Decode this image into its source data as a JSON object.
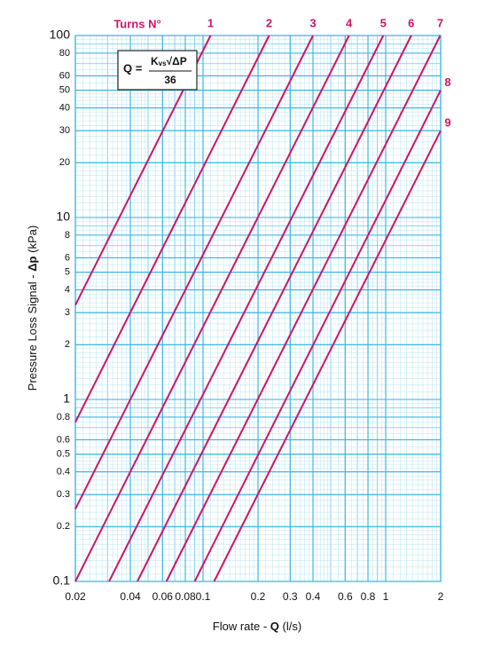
{
  "chart_data": {
    "type": "line",
    "log_x": true,
    "log_y": true,
    "grid": true,
    "legend_title": "Turns N°",
    "x_label": [
      "Flow rate - ",
      "Q",
      " (l/s)"
    ],
    "y_label": [
      "Pressure Loss Signal  - ",
      "Δp",
      " (kPa)"
    ],
    "formula": {
      "lhs": "Q =",
      "k": "K",
      "sub": "vs",
      "root": "√ΔP",
      "denominator": "36"
    },
    "xlim": [
      0.02,
      2
    ],
    "ylim": [
      0.1,
      100
    ],
    "xticks": [
      0.02,
      0.04,
      0.06,
      0.08,
      0.1,
      0.2,
      0.3,
      0.4,
      0.6,
      0.8,
      1,
      2
    ],
    "yticks": [
      0.1,
      0.2,
      0.3,
      0.4,
      0.5,
      0.6,
      0.8,
      1,
      2,
      3,
      4,
      5,
      6,
      8,
      10,
      20,
      30,
      40,
      50,
      60,
      80,
      100
    ],
    "series": [
      {
        "name": "1",
        "color": "#cf1468",
        "x": [
          0.02,
          0.11
        ],
        "values": [
          3.3,
          100
        ]
      },
      {
        "name": "2",
        "color": "#cf1468",
        "x": [
          0.02,
          0.23
        ],
        "values": [
          0.75,
          100
        ]
      },
      {
        "name": "3",
        "color": "#cf1468",
        "x": [
          0.02,
          0.4
        ],
        "values": [
          0.25,
          100
        ]
      },
      {
        "name": "4",
        "color": "#cf1468",
        "x": [
          0.02,
          0.63
        ],
        "values": [
          0.1,
          100
        ]
      },
      {
        "name": "5",
        "color": "#cf1468",
        "x": [
          0.0306,
          0.97
        ],
        "values": [
          0.1,
          100
        ]
      },
      {
        "name": "6",
        "color": "#cf1468",
        "x": [
          0.0437,
          1.38
        ],
        "values": [
          0.1,
          100
        ]
      },
      {
        "name": "7",
        "color": "#cf1468",
        "x": [
          0.063,
          1.99
        ],
        "values": [
          0.1,
          100
        ]
      },
      {
        "name": "8",
        "color": "#cf1468",
        "x": [
          0.09,
          2
        ],
        "values": [
          0.1,
          50
        ]
      },
      {
        "name": "9",
        "color": "#cf1468",
        "x": [
          0.115,
          2
        ],
        "values": [
          0.1,
          30
        ]
      }
    ]
  }
}
